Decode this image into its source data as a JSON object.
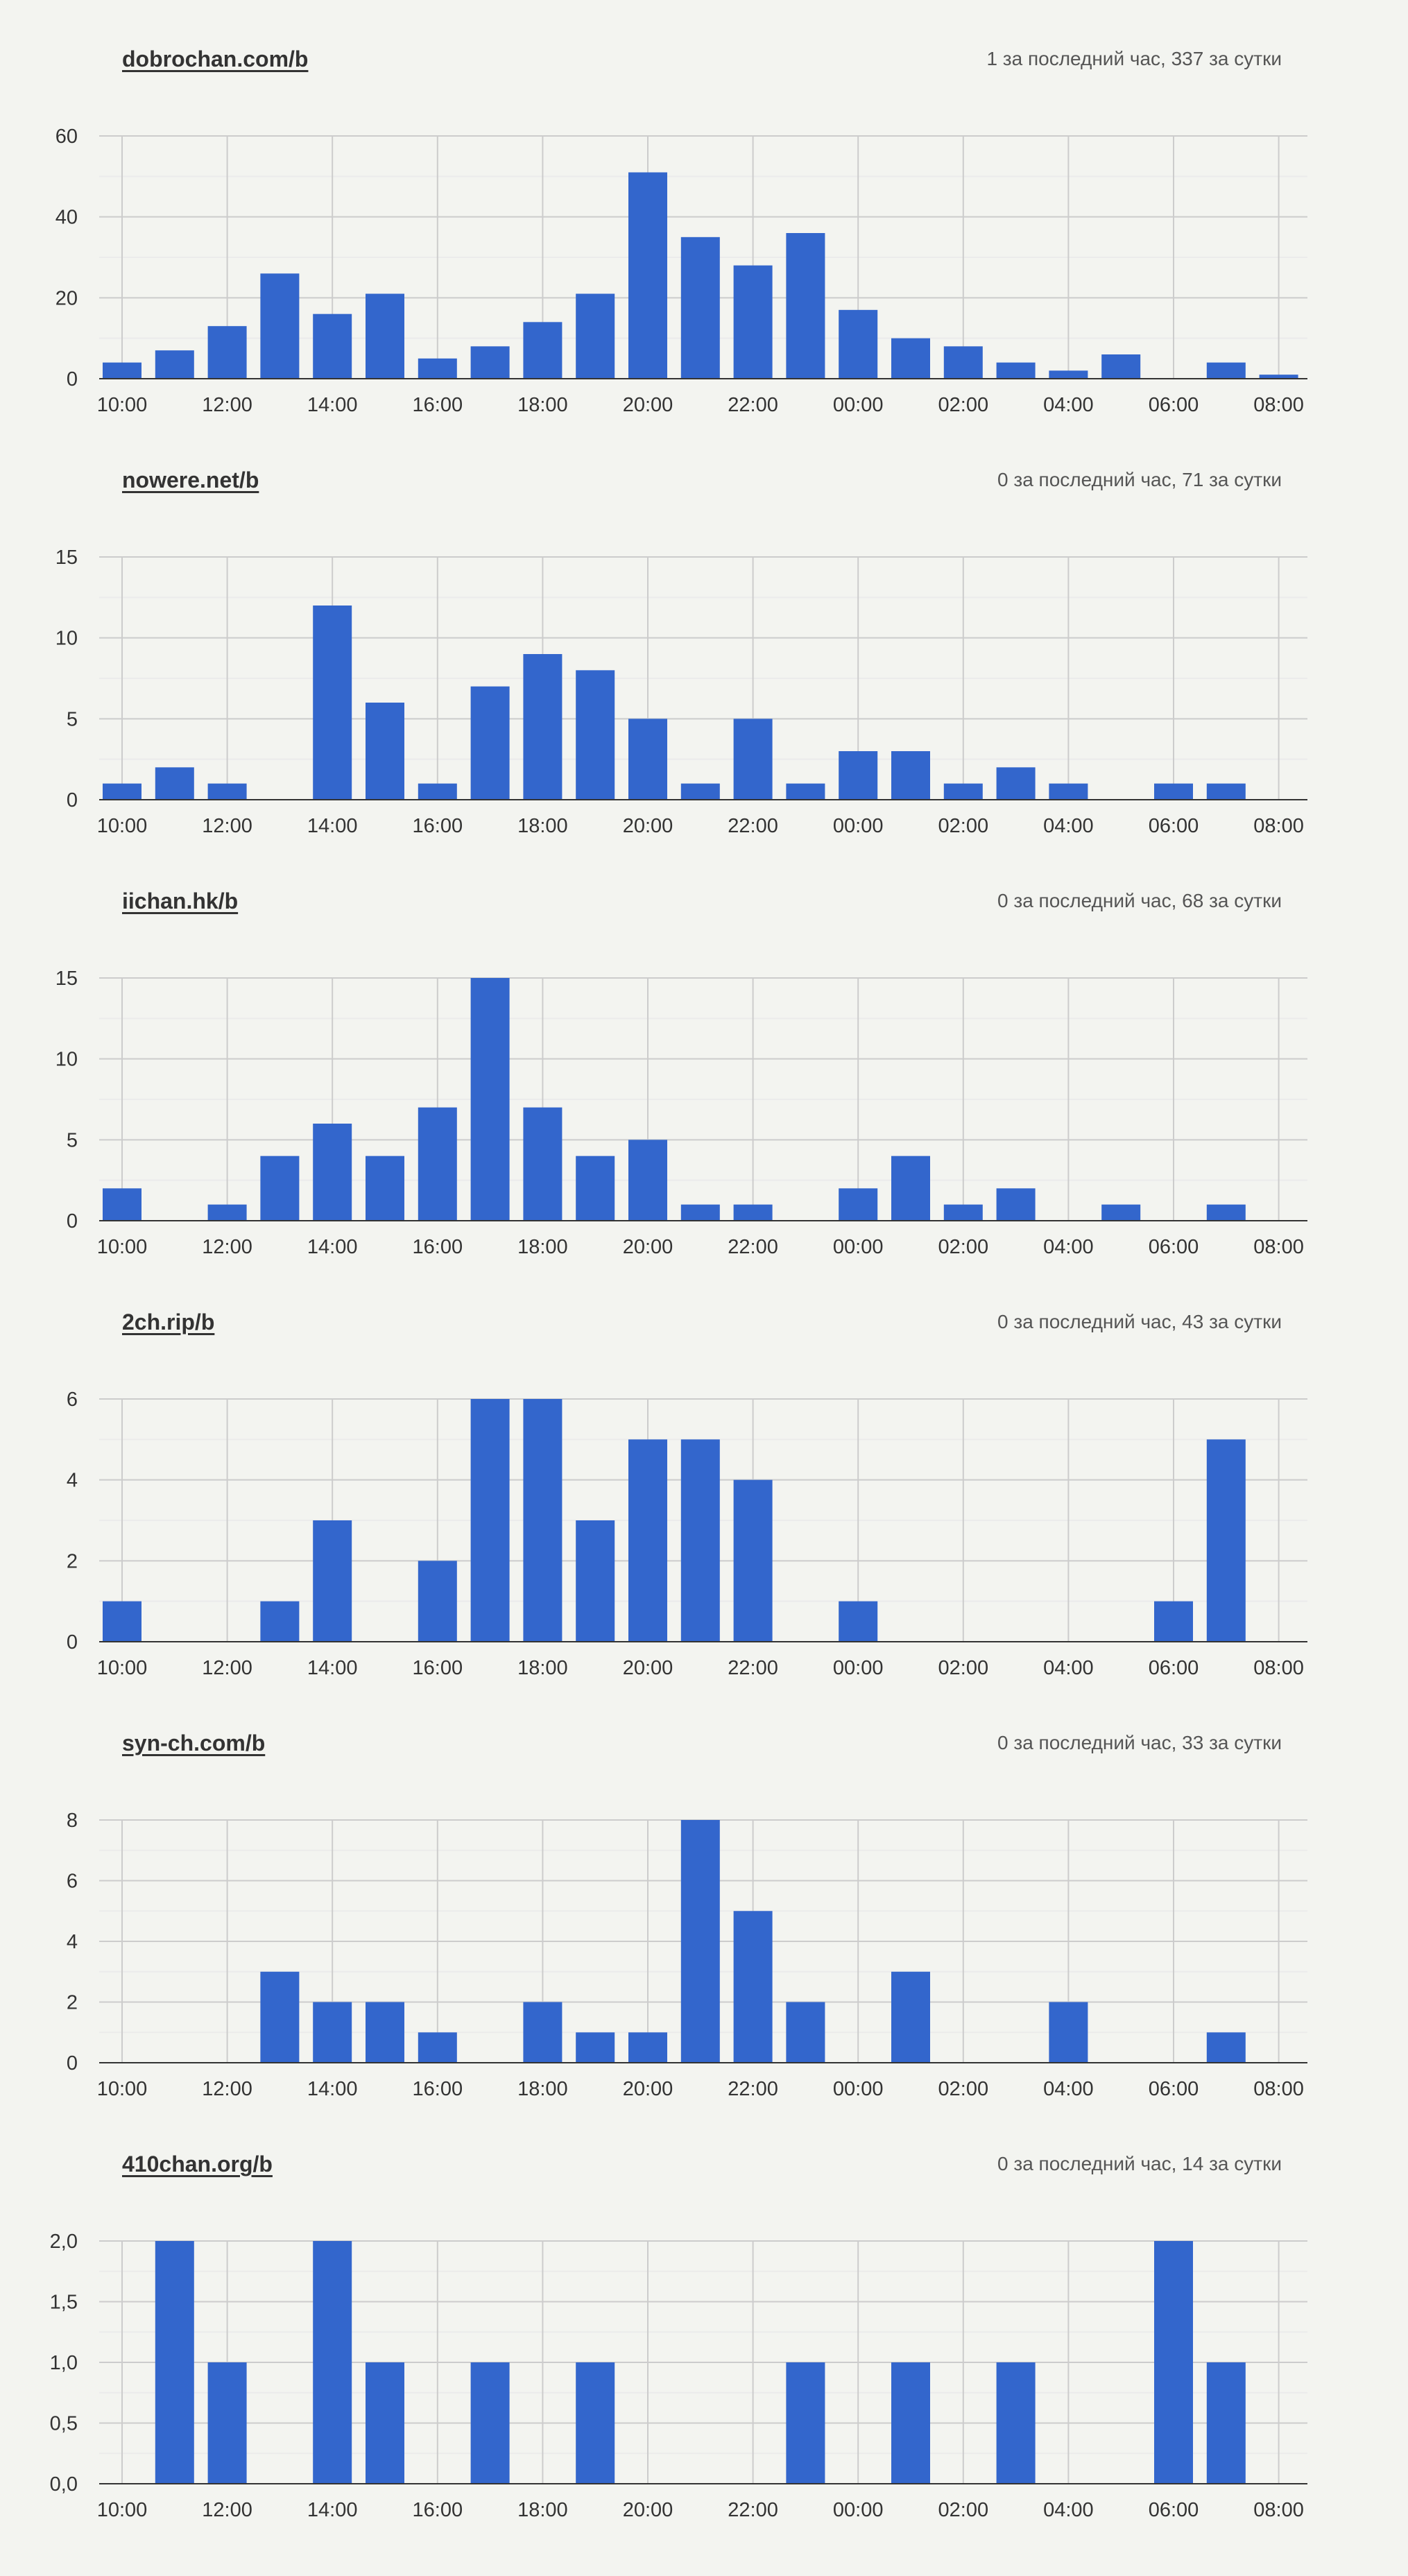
{
  "colors": {
    "bar": "#3366cc",
    "grid": "#cccccc",
    "minor_grid": "#ebebeb",
    "axis": "#333333",
    "background": "#f3f4f0"
  },
  "x_tick_labels": [
    "10:00",
    "12:00",
    "14:00",
    "16:00",
    "18:00",
    "20:00",
    "22:00",
    "00:00",
    "02:00",
    "04:00",
    "06:00",
    "08:00"
  ],
  "hour_slots": [
    "10:00",
    "11:00",
    "12:00",
    "13:00",
    "14:00",
    "15:00",
    "16:00",
    "17:00",
    "18:00",
    "19:00",
    "20:00",
    "21:00",
    "22:00",
    "23:00",
    "00:00",
    "01:00",
    "02:00",
    "03:00",
    "04:00",
    "05:00",
    "06:00",
    "07:00",
    "08:00"
  ],
  "boards": [
    {
      "name": "dobrochan.com/b",
      "stats": "1 за последний час, 337 за сутки"
    },
    {
      "name": "nowere.net/b",
      "stats": "0 за последний час, 71 за сутки"
    },
    {
      "name": "iichan.hk/b",
      "stats": "0 за последний час, 68 за сутки"
    },
    {
      "name": "2ch.rip/b",
      "stats": "0 за последний час, 43 за сутки"
    },
    {
      "name": "syn-ch.com/b",
      "stats": "0 за последний час, 33 за сутки"
    },
    {
      "name": "410chan.org/b",
      "stats": "0 за последний час, 14 за сутки"
    }
  ],
  "chart_data": [
    {
      "type": "bar",
      "ylim": [
        0,
        60
      ],
      "yticks": [
        0,
        20,
        40,
        60
      ],
      "ytick_labels": [
        "0",
        "20",
        "40",
        "60"
      ],
      "values": [
        4,
        7,
        13,
        26,
        16,
        21,
        5,
        8,
        14,
        21,
        51,
        35,
        28,
        36,
        17,
        10,
        8,
        4,
        2,
        6,
        0,
        4,
        1
      ]
    },
    {
      "type": "bar",
      "ylim": [
        0,
        15
      ],
      "yticks": [
        0,
        5,
        10,
        15
      ],
      "ytick_labels": [
        "0",
        "5",
        "10",
        "15"
      ],
      "values": [
        1,
        2,
        1,
        0,
        12,
        6,
        1,
        7,
        9,
        8,
        5,
        1,
        5,
        1,
        3,
        3,
        1,
        2,
        1,
        0,
        1,
        1,
        0
      ]
    },
    {
      "type": "bar",
      "ylim": [
        0,
        15
      ],
      "yticks": [
        0,
        5,
        10,
        15
      ],
      "ytick_labels": [
        "0",
        "5",
        "10",
        "15"
      ],
      "values": [
        2,
        0,
        1,
        4,
        6,
        4,
        7,
        15,
        7,
        4,
        5,
        1,
        1,
        0,
        2,
        4,
        1,
        2,
        0,
        1,
        0,
        1,
        0
      ]
    },
    {
      "type": "bar",
      "ylim": [
        0,
        6
      ],
      "yticks": [
        0,
        2,
        4,
        6
      ],
      "ytick_labels": [
        "0",
        "2",
        "4",
        "6"
      ],
      "values": [
        1,
        0,
        0,
        1,
        3,
        0,
        2,
        6,
        6,
        3,
        5,
        5,
        4,
        0,
        1,
        0,
        0,
        0,
        0,
        0,
        1,
        5,
        0
      ]
    },
    {
      "type": "bar",
      "ylim": [
        0,
        8
      ],
      "yticks": [
        0,
        2,
        4,
        6,
        8
      ],
      "ytick_labels": [
        "0",
        "2",
        "4",
        "6",
        "8"
      ],
      "values": [
        0,
        0,
        0,
        3,
        2,
        2,
        1,
        0,
        2,
        1,
        1,
        8,
        5,
        2,
        0,
        3,
        0,
        0,
        2,
        0,
        0,
        1,
        0
      ]
    },
    {
      "type": "bar",
      "ylim": [
        0,
        2
      ],
      "yticks": [
        0,
        0.5,
        1,
        1.5,
        2
      ],
      "ytick_labels": [
        "0,0",
        "0,5",
        "1,0",
        "1,5",
        "2,0"
      ],
      "values": [
        0,
        2,
        1,
        0,
        2,
        1,
        0,
        1,
        0,
        1,
        0,
        0,
        0,
        1,
        0,
        1,
        0,
        1,
        0,
        0,
        2,
        1,
        0
      ]
    }
  ]
}
